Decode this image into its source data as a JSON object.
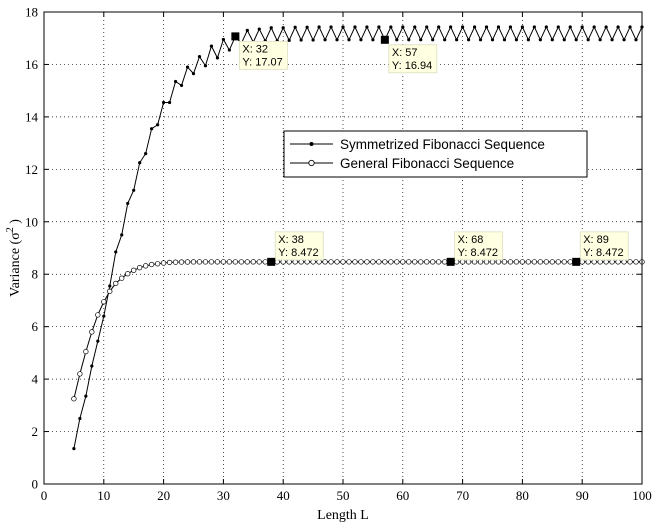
{
  "chart_data": {
    "type": "line",
    "title": "",
    "xlabel": "Length L",
    "ylabel": "Variance (σ²)",
    "ylabel_prefix": "Variance (",
    "ylabel_sigma": "σ",
    "ylabel_exp": "2",
    "ylabel_suffix": " )",
    "xlim": [
      0,
      100
    ],
    "ylim": [
      0,
      18
    ],
    "xticks": [
      "0",
      "10",
      "20",
      "30",
      "40",
      "50",
      "60",
      "70",
      "80",
      "90",
      "100"
    ],
    "yticks": [
      "0",
      "2",
      "4",
      "6",
      "8",
      "10",
      "12",
      "14",
      "16",
      "18"
    ],
    "grid": true,
    "grid_style": "dotted",
    "legend_position": "center-right",
    "series": [
      {
        "name": "Symmetrized Fibonacci Sequence",
        "marker": "filled-dot",
        "color": "#000000",
        "x": [
          5,
          6,
          7,
          8,
          9,
          10,
          11,
          12,
          13,
          14,
          15,
          16,
          17,
          18,
          19,
          20,
          21,
          22,
          23,
          24,
          25,
          26,
          27,
          28,
          29,
          30,
          31,
          32,
          33,
          34,
          35,
          36,
          37,
          38,
          39,
          40,
          41,
          42,
          43,
          44,
          45,
          46,
          47,
          48,
          49,
          50,
          51,
          52,
          53,
          54,
          55,
          56,
          57,
          58,
          59,
          60,
          61,
          62,
          63,
          64,
          65,
          66,
          67,
          68,
          69,
          70,
          71,
          72,
          73,
          74,
          75,
          76,
          77,
          78,
          79,
          80,
          81,
          82,
          83,
          84,
          85,
          86,
          87,
          88,
          89,
          90,
          91,
          92,
          93,
          94,
          95,
          96,
          97,
          98,
          99,
          100
        ],
        "y": [
          1.35,
          2.5,
          3.35,
          4.5,
          5.45,
          6.4,
          7.55,
          8.85,
          9.5,
          10.7,
          11.2,
          12.25,
          12.6,
          13.55,
          13.7,
          14.55,
          14.55,
          15.35,
          15.2,
          15.9,
          15.65,
          16.3,
          15.95,
          16.7,
          16.25,
          16.95,
          16.55,
          17.07,
          16.8,
          17.3,
          16.85,
          17.35,
          16.9,
          17.4,
          16.9,
          17.4,
          16.92,
          17.42,
          16.93,
          17.42,
          16.93,
          17.43,
          16.94,
          17.43,
          16.94,
          17.43,
          16.94,
          17.43,
          16.94,
          17.43,
          16.94,
          17.43,
          16.94,
          17.43,
          16.94,
          17.43,
          16.94,
          17.43,
          16.94,
          17.43,
          16.94,
          17.43,
          16.94,
          17.43,
          16.94,
          17.43,
          16.94,
          17.43,
          16.94,
          17.43,
          16.94,
          17.43,
          16.94,
          17.43,
          16.94,
          17.43,
          16.94,
          17.43,
          16.94,
          17.43,
          16.94,
          17.43,
          16.94,
          17.43,
          16.94,
          17.43,
          16.94,
          17.43,
          16.94,
          17.43,
          16.94,
          17.43,
          16.94,
          17.43,
          16.94,
          17.43
        ]
      },
      {
        "name": "General Fibonacci Sequence",
        "marker": "open-circle",
        "color": "#000000",
        "x": [
          5,
          6,
          7,
          8,
          9,
          10,
          11,
          12,
          13,
          14,
          15,
          16,
          17,
          18,
          19,
          20,
          21,
          22,
          23,
          24,
          25,
          26,
          27,
          28,
          29,
          30,
          31,
          32,
          33,
          34,
          35,
          36,
          37,
          38,
          39,
          40,
          41,
          42,
          43,
          44,
          45,
          46,
          47,
          48,
          49,
          50,
          51,
          52,
          53,
          54,
          55,
          56,
          57,
          58,
          59,
          60,
          61,
          62,
          63,
          64,
          65,
          66,
          67,
          68,
          69,
          70,
          71,
          72,
          73,
          74,
          75,
          76,
          77,
          78,
          79,
          80,
          81,
          82,
          83,
          84,
          85,
          86,
          87,
          88,
          89,
          90,
          91,
          92,
          93,
          94,
          95,
          96,
          97,
          98,
          99,
          100
        ],
        "y": [
          3.25,
          4.2,
          5.05,
          5.8,
          6.45,
          6.95,
          7.35,
          7.65,
          7.85,
          8.02,
          8.15,
          8.25,
          8.32,
          8.37,
          8.4,
          8.43,
          8.45,
          8.46,
          8.465,
          8.468,
          8.47,
          8.471,
          8.471,
          8.472,
          8.472,
          8.472,
          8.472,
          8.472,
          8.472,
          8.472,
          8.472,
          8.472,
          8.472,
          8.472,
          8.472,
          8.472,
          8.472,
          8.472,
          8.472,
          8.472,
          8.472,
          8.472,
          8.472,
          8.472,
          8.472,
          8.472,
          8.472,
          8.472,
          8.472,
          8.472,
          8.472,
          8.472,
          8.472,
          8.472,
          8.472,
          8.472,
          8.472,
          8.472,
          8.472,
          8.472,
          8.472,
          8.472,
          8.472,
          8.472,
          8.472,
          8.472,
          8.472,
          8.472,
          8.472,
          8.472,
          8.472,
          8.472,
          8.472,
          8.472,
          8.472,
          8.472,
          8.472,
          8.472,
          8.472,
          8.472,
          8.472,
          8.472,
          8.472,
          8.472,
          8.472,
          8.472,
          8.472,
          8.472,
          8.472,
          8.472,
          8.472,
          8.472,
          8.472,
          8.472,
          8.472,
          8.472
        ]
      }
    ],
    "datatips": [
      {
        "x": 32,
        "y": 17.07,
        "line1": "X: 32",
        "line2": "Y: 17.07"
      },
      {
        "x": 57,
        "y": 16.94,
        "line1": "X: 57",
        "line2": "Y: 16.94"
      },
      {
        "x": 38,
        "y": 8.472,
        "line1": "X: 38",
        "line2": "Y: 8.472"
      },
      {
        "x": 68,
        "y": 8.472,
        "line1": "X: 68",
        "line2": "Y: 8.472"
      },
      {
        "x": 89,
        "y": 8.472,
        "line1": "X: 89",
        "line2": "Y: 8.472"
      }
    ],
    "datatip_bg": "#ffffe1"
  }
}
